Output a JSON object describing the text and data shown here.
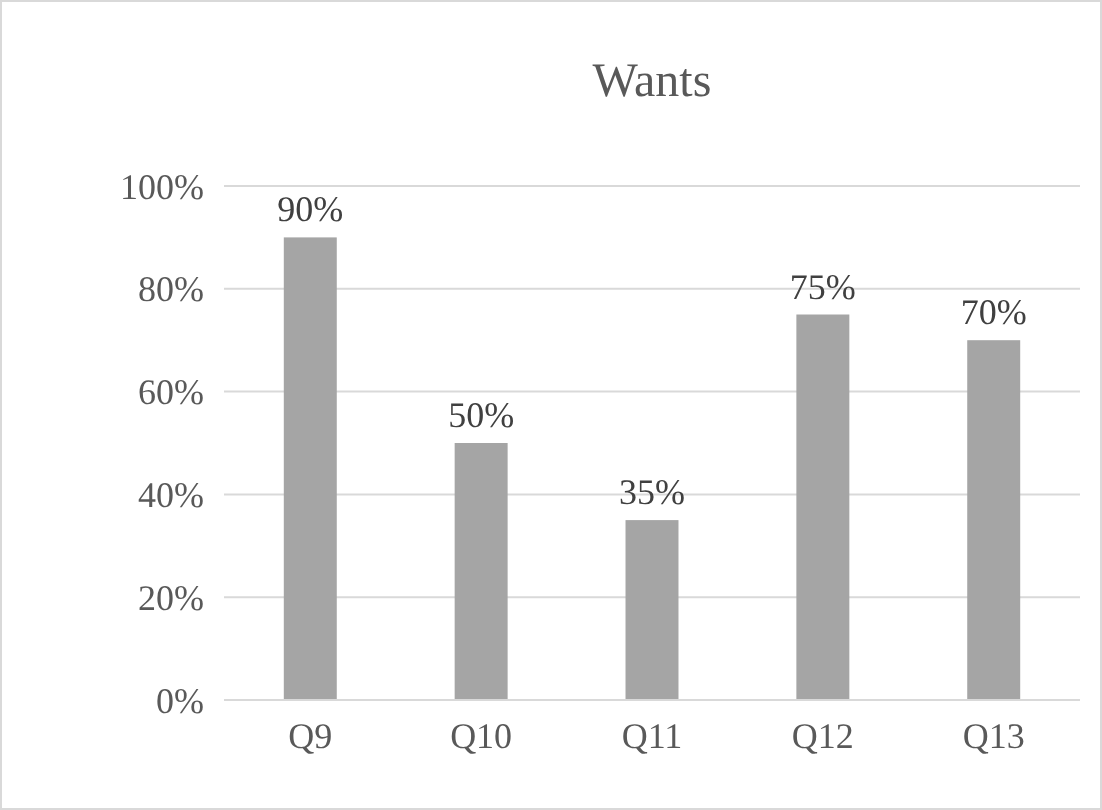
{
  "chart_data": {
    "type": "bar",
    "title": "Wants",
    "categories": [
      "Q9",
      "Q10",
      "Q11",
      "Q12",
      "Q13"
    ],
    "values": [
      90,
      50,
      35,
      75,
      70
    ],
    "color": "#a5a5a5",
    "value_labels": [
      "90%",
      "50%",
      "35%",
      "75%",
      "70%"
    ],
    "ylim": [
      0,
      100
    ],
    "yticks": [
      {
        "value": 0,
        "label": "0%"
      },
      {
        "value": 20,
        "label": "20%"
      },
      {
        "value": 40,
        "label": "40%"
      },
      {
        "value": 60,
        "label": "60%"
      },
      {
        "value": 80,
        "label": "80%"
      },
      {
        "value": 100,
        "label": "100%"
      }
    ],
    "grid": "y"
  }
}
